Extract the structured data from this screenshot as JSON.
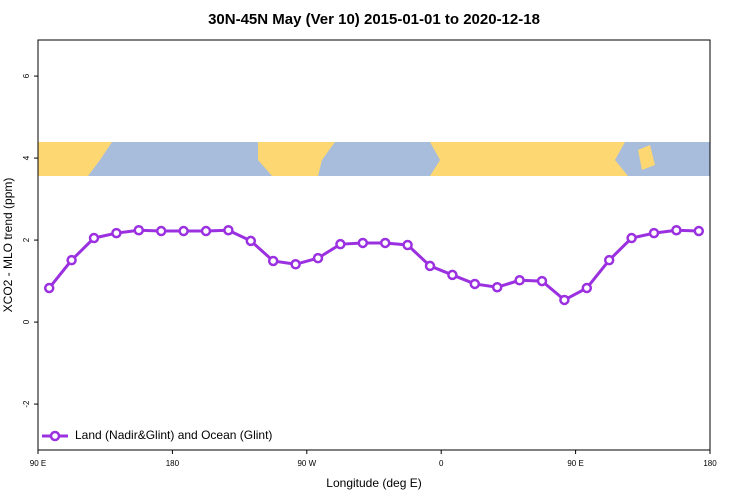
{
  "chart_data": {
    "type": "line",
    "title": "30N-45N May (Ver 10)   2015-01-01 to 2020-12-18",
    "x_label": "Longitude (deg E)",
    "y_label": "XCO2 - MLO trend (ppm)",
    "xlim": [
      90,
      540
    ],
    "ylim": [
      -3.12,
      6.88
    ],
    "xticks": [
      {
        "value": 90,
        "label": "90 E"
      },
      180,
      {
        "value": 270,
        "label": "90 W"
      },
      {
        "value": 360,
        "label": "0"
      },
      {
        "value": 450,
        "label": "90 E"
      },
      {
        "value": 540,
        "label": "180"
      }
    ],
    "yticks": [
      -2,
      0,
      2,
      4,
      6
    ],
    "legend_position": "bottom-left",
    "x": [
      97.5,
      112.5,
      127.5,
      142.5,
      157.5,
      172.5,
      187.5,
      202.5,
      217.5,
      232.5,
      247.5,
      262.5,
      277.5,
      292.5,
      307.5,
      322.5,
      337.5,
      352.5,
      367.5,
      382.5,
      397.5,
      412.5,
      427.5,
      442.5,
      457.5,
      472.5,
      487.5,
      502.5,
      517.5,
      532.5
    ],
    "series": [
      {
        "name": "Land (Nadir&Glint) and Ocean (Glint)",
        "color": "#9b30e0",
        "values": [
          0.83,
          1.51,
          2.05,
          2.17,
          2.24,
          2.22,
          2.22,
          2.22,
          2.24,
          1.98,
          1.49,
          1.41,
          1.56,
          1.9,
          1.93,
          1.93,
          1.88,
          1.37,
          1.15,
          0.93,
          0.85,
          1.02,
          1.0,
          0.54,
          0.83,
          1.51,
          2.05,
          2.17,
          2.24,
          2.22
        ]
      }
    ]
  }
}
